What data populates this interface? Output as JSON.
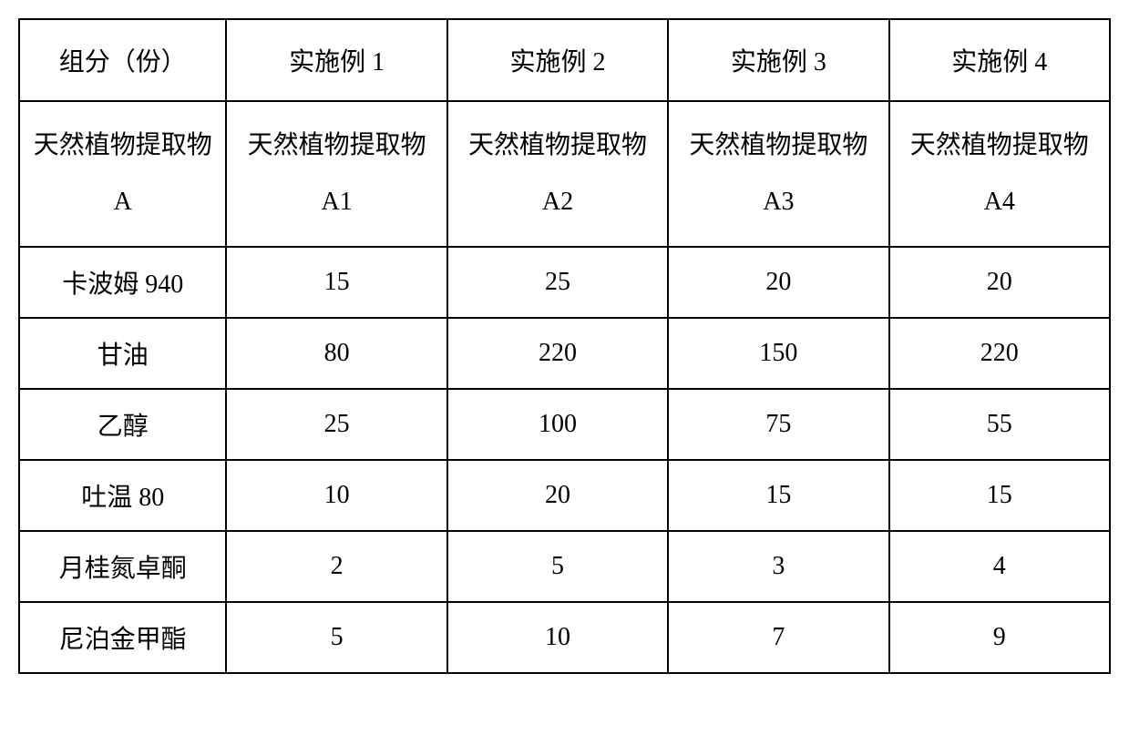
{
  "table": {
    "type": "table",
    "background_color": "#ffffff",
    "border_color": "#000000",
    "border_width": 2,
    "font_size": 28,
    "text_color": "#000000",
    "columns": [
      {
        "key": "component",
        "width_pct": 19,
        "align": "center"
      },
      {
        "key": "example1",
        "width_pct": 20.25,
        "align": "center"
      },
      {
        "key": "example2",
        "width_pct": 20.25,
        "align": "center"
      },
      {
        "key": "example3",
        "width_pct": 20.25,
        "align": "center"
      },
      {
        "key": "example4",
        "width_pct": 20.25,
        "align": "center"
      }
    ],
    "header": {
      "component": "组分（份）",
      "example1": "实施例 1",
      "example2": "实施例 2",
      "example3": "实施例 3",
      "example4": "实施例 4"
    },
    "rows": [
      {
        "component": "天然植物提取物 A",
        "example1": "天然植物提取物 A1",
        "example2": "天然植物提取物 A2",
        "example3": "天然植物提取物 A3",
        "example4": "天然植物提取物 A4",
        "row_height": "tall"
      },
      {
        "component": "卡波姆 940",
        "example1": "15",
        "example2": "25",
        "example3": "20",
        "example4": "20",
        "row_height": "normal"
      },
      {
        "component": "甘油",
        "example1": "80",
        "example2": "220",
        "example3": "150",
        "example4": "220",
        "row_height": "normal"
      },
      {
        "component": "乙醇",
        "example1": "25",
        "example2": "100",
        "example3": "75",
        "example4": "55",
        "row_height": "normal"
      },
      {
        "component": "吐温 80",
        "example1": "10",
        "example2": "20",
        "example3": "15",
        "example4": "15",
        "row_height": "normal"
      },
      {
        "component": "月桂氮卓酮",
        "example1": "2",
        "example2": "5",
        "example3": "3",
        "example4": "4",
        "row_height": "normal"
      },
      {
        "component": "尼泊金甲酯",
        "example1": "5",
        "example2": "10",
        "example3": "7",
        "example4": "9",
        "row_height": "normal"
      }
    ]
  }
}
